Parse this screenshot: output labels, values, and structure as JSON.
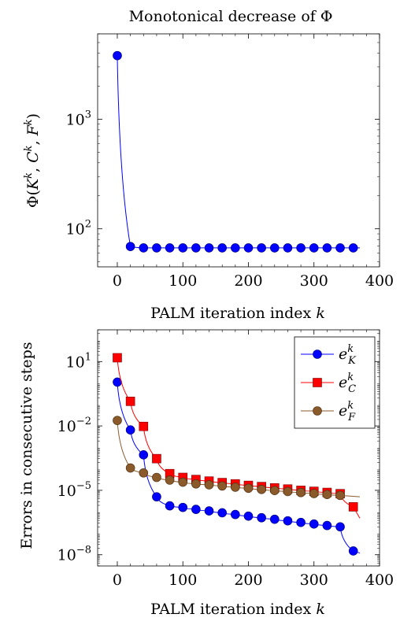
{
  "chart_data": [
    {
      "type": "line",
      "title": "Monotonical decrease of Φ",
      "xlabel": "PALM iteration index k",
      "ylabel": "Φ(K^k, C^k, F^k)",
      "xlim": [
        -30,
        400
      ],
      "ylim": [
        45,
        6000
      ],
      "y_scale": "log",
      "grid": false,
      "x_ticks": [
        "0",
        "100",
        "200",
        "300",
        "400"
      ],
      "y_ticks": [
        "10^3",
        "10^2"
      ],
      "series": [
        {
          "color": "#0000ff",
          "marker": "circle",
          "x": [
            0,
            20,
            40,
            60,
            80,
            100,
            120,
            140,
            160,
            180,
            200,
            220,
            240,
            260,
            280,
            300,
            320,
            340,
            360
          ],
          "y": [
            3800,
            69,
            67,
            67,
            67,
            67,
            67,
            67,
            67,
            67,
            67,
            67,
            67,
            67,
            67,
            67,
            67,
            67,
            67
          ]
        }
      ]
    },
    {
      "type": "line",
      "title": "",
      "xlabel": "PALM iteration index k",
      "ylabel": "Errors in consecutive steps",
      "xlim": [
        -30,
        400
      ],
      "ylim": [
        3e-09,
        300
      ],
      "y_scale": "log",
      "grid": false,
      "legend_position": "top-right",
      "x_ticks": [
        "0",
        "100",
        "200",
        "300",
        "400"
      ],
      "y_ticks": [
        "10^1",
        "10^-2",
        "10^-5",
        "10^-8"
      ],
      "series": [
        {
          "name": "e_K^k",
          "color": "#0000ff",
          "marker": "circle",
          "x": [
            0,
            20,
            40,
            60,
            80,
            100,
            120,
            140,
            160,
            180,
            200,
            220,
            240,
            260,
            280,
            300,
            320,
            340,
            360
          ],
          "y": [
            1.1,
            0.0065,
            0.00045,
            5e-06,
            1.9e-06,
            1.6e-06,
            1.3e-06,
            1.1e-06,
            9e-07,
            7.5e-07,
            6.3e-07,
            5.3e-07,
            4.5e-07,
            3.8e-07,
            3.2e-07,
            2.7e-07,
            2.3e-07,
            2e-07,
            1.5e-08
          ]
        },
        {
          "name": "e_C^k",
          "color": "#ff0000",
          "marker": "square",
          "x": [
            0,
            20,
            40,
            60,
            80,
            100,
            120,
            140,
            160,
            180,
            200,
            220,
            240,
            260,
            280,
            300,
            320,
            340,
            360
          ],
          "y": [
            15,
            0.14,
            0.0095,
            0.0003,
            6e-05,
            4e-05,
            3.2e-05,
            2.7e-05,
            2.3e-05,
            2e-05,
            1.7e-05,
            1.5e-05,
            1.3e-05,
            1.15e-05,
            1e-05,
            9e-06,
            8e-06,
            7e-06,
            1.7e-06
          ]
        },
        {
          "name": "e_F^k",
          "color": "#8b5a2b",
          "marker": "circle",
          "x": [
            0,
            20,
            40,
            60,
            80,
            100,
            120,
            140,
            160,
            180,
            200,
            220,
            240,
            260,
            280,
            300,
            320,
            340
          ],
          "y": [
            0.018,
            0.00011,
            6.5e-05,
            4e-05,
            3e-05,
            2.4e-05,
            2e-05,
            1.8e-05,
            1.6e-05,
            1.4e-05,
            1.25e-05,
            1.1e-05,
            9.8e-06,
            8.8e-06,
            7.9e-06,
            7.1e-06,
            6.4e-06,
            5.8e-06
          ]
        }
      ]
    }
  ]
}
